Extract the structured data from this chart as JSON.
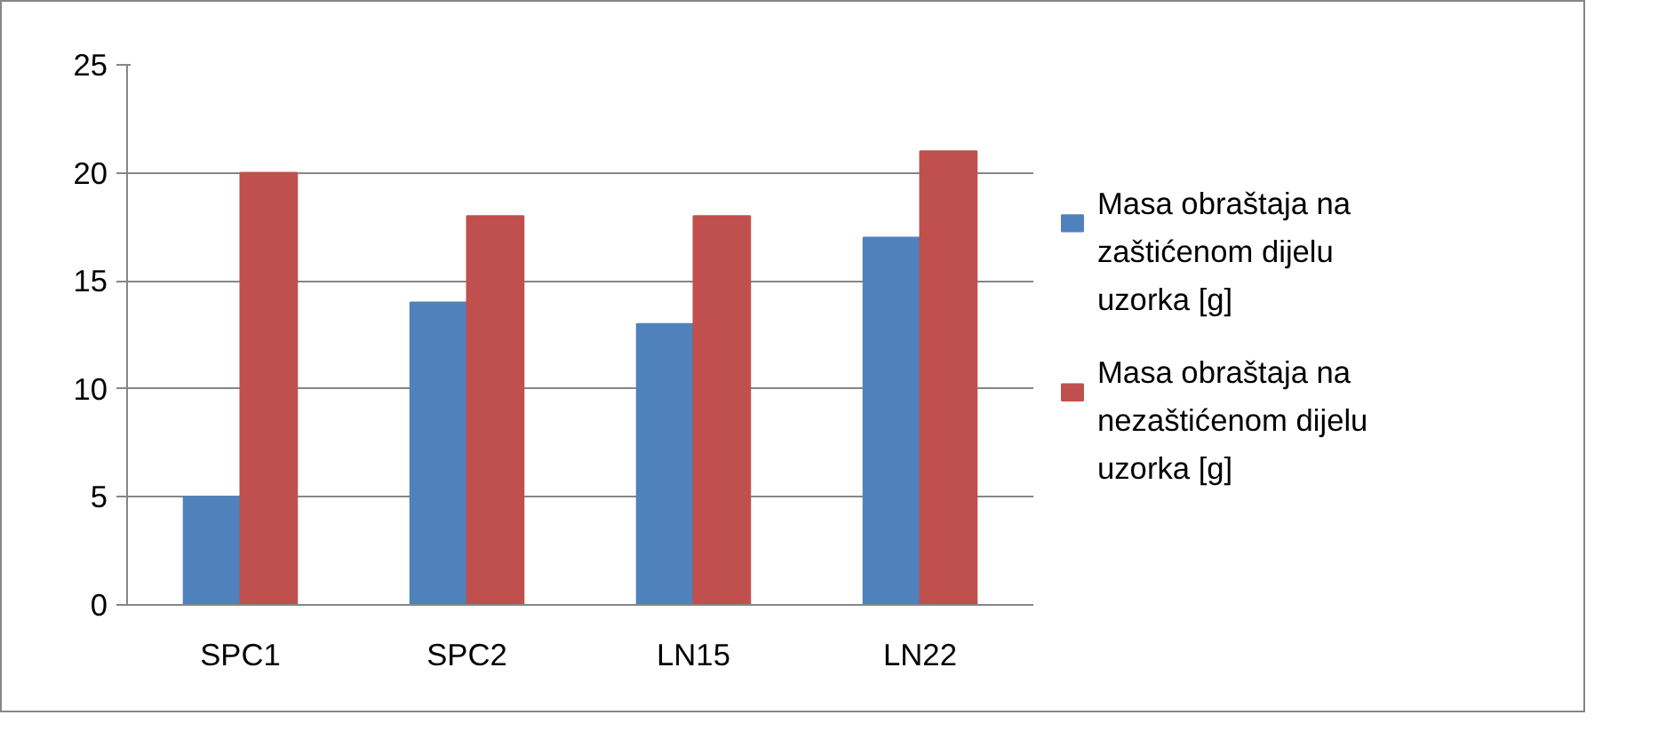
{
  "chart_data": {
    "type": "bar",
    "categories": [
      "SPC1",
      "SPC2",
      "LN15",
      "LN22"
    ],
    "series": [
      {
        "name": "Masa obraštaja na zaštićenom dijelu uzorka [g]",
        "color": "#4f81bd",
        "values": [
          5,
          14,
          13,
          17
        ]
      },
      {
        "name": "Masa obraštaja na nezaštićenom dijelu uzorka [g]",
        "color": "#c0504d",
        "values": [
          20,
          18,
          18,
          21
        ]
      }
    ],
    "ylim": [
      0,
      25
    ],
    "yticks": [
      0,
      5,
      10,
      15,
      20,
      25
    ],
    "grid": "y",
    "legend": "right"
  }
}
